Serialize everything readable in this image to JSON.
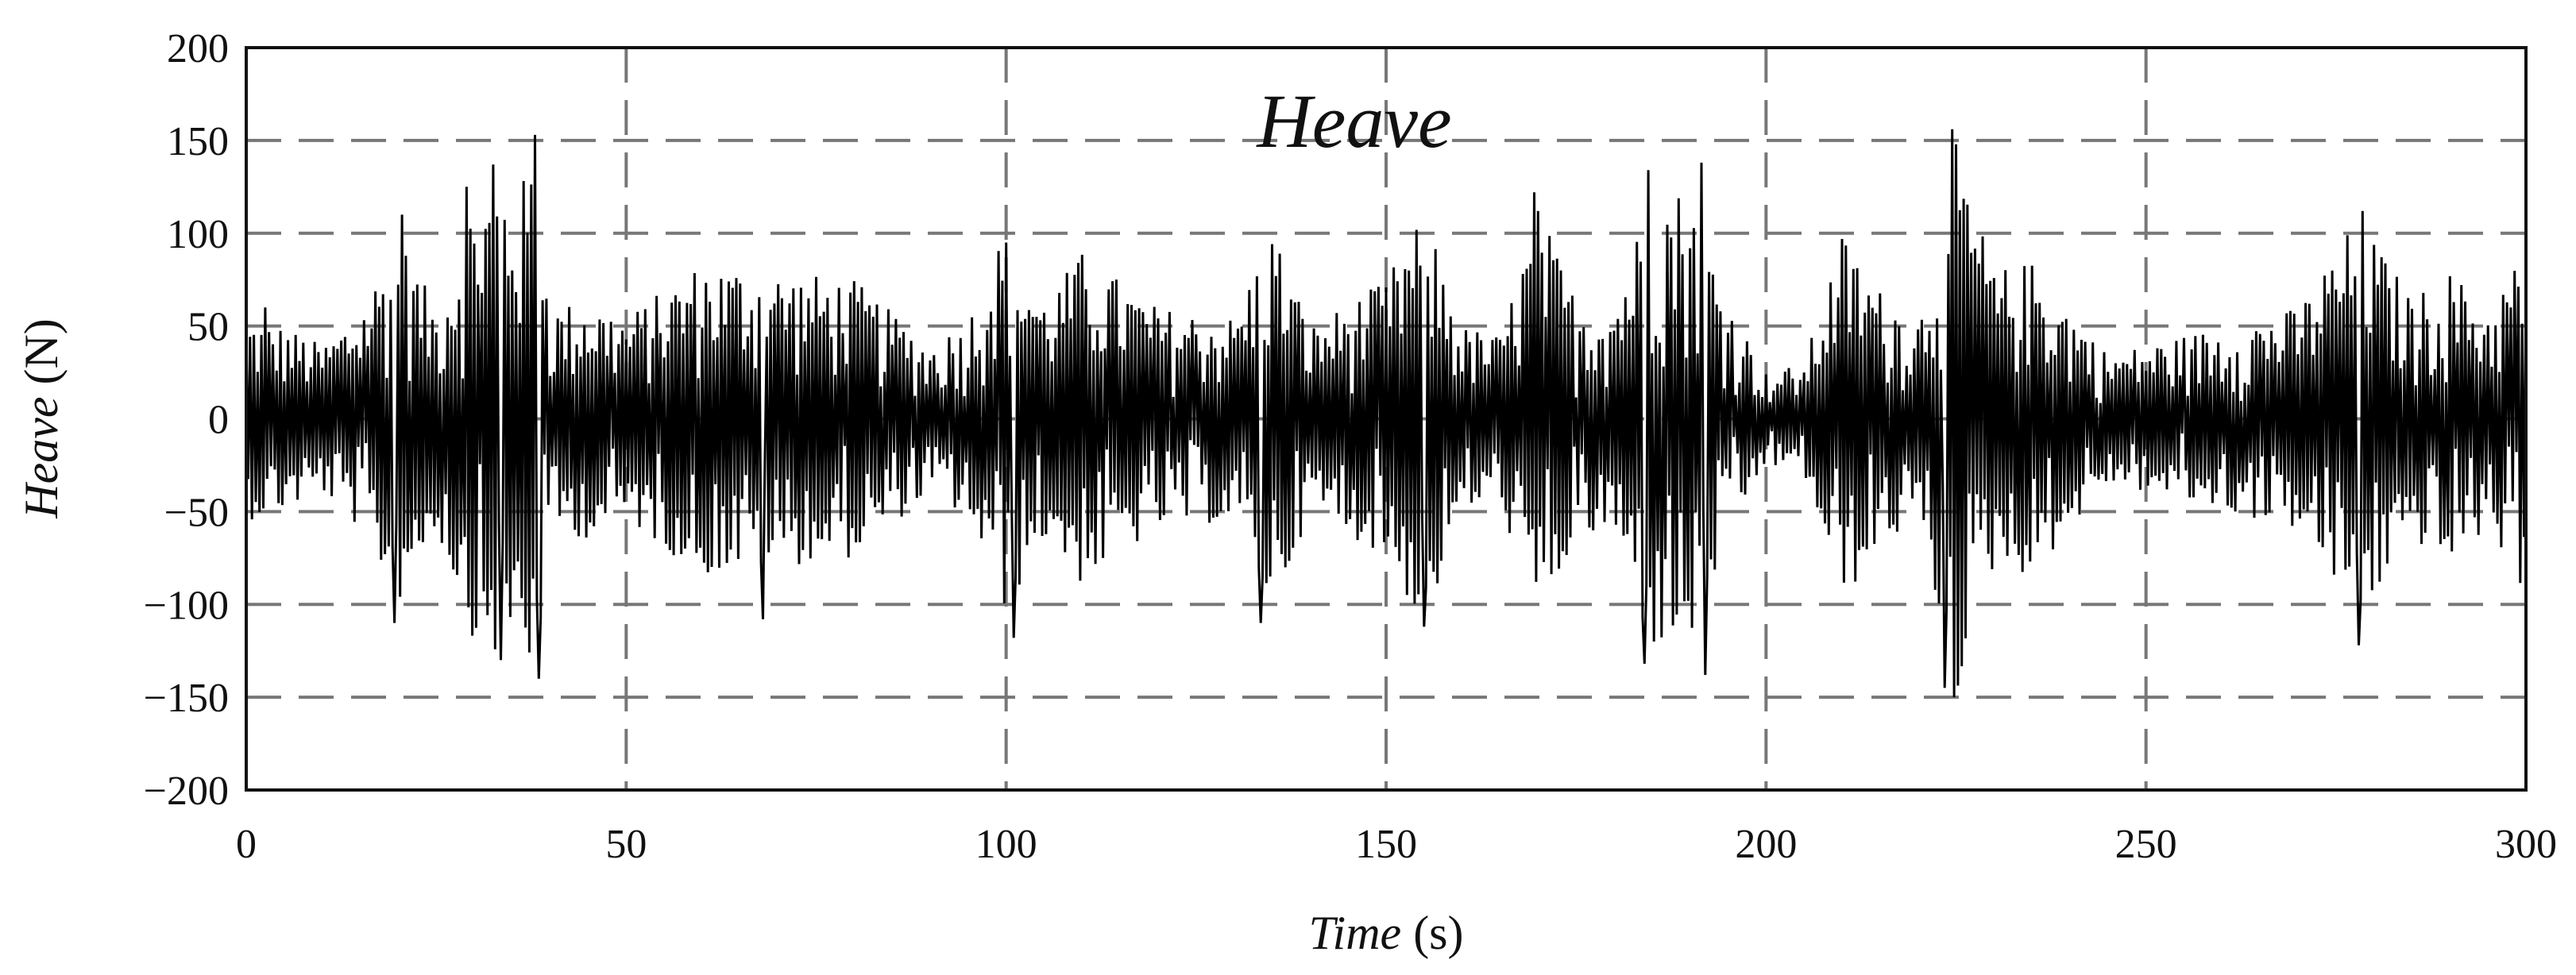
{
  "chart_data": {
    "type": "line",
    "title": "Heave",
    "xlabel_italic": "Time",
    "xlabel_unit": " (s)",
    "ylabel_italic": "Heave",
    "ylabel_unit": " (N)",
    "xlim": [
      0,
      300
    ],
    "ylim": [
      -200,
      200
    ],
    "xticks": [
      0,
      50,
      100,
      150,
      200,
      250,
      300
    ],
    "yticks": [
      200,
      150,
      100,
      50,
      0,
      -50,
      -100,
      -150,
      -200
    ],
    "grid": {
      "x": true,
      "y": true,
      "style": "dashed"
    },
    "sample_interval_s": 0.25,
    "envelope": {
      "t": [
        0,
        5,
        10,
        15,
        20,
        25,
        30,
        33,
        36,
        38,
        40,
        45,
        50,
        60,
        70,
        80,
        90,
        95,
        100,
        105,
        110,
        120,
        130,
        135,
        140,
        150,
        155,
        160,
        165,
        170,
        175,
        180,
        185,
        190,
        195,
        200,
        205,
        210,
        215,
        220,
        225,
        230,
        235,
        240,
        245,
        250,
        260,
        270,
        278,
        285,
        290,
        295,
        300
      ],
      "amp": [
        55,
        50,
        40,
        60,
        100,
        60,
        120,
        130,
        125,
        145,
        60,
        65,
        55,
        85,
        80,
        75,
        40,
        55,
        105,
        65,
        90,
        60,
        55,
        105,
        50,
        75,
        115,
        50,
        45,
        115,
        65,
        65,
        125,
        125,
        65,
        25,
        30,
        100,
        70,
        55,
        150,
        80,
        85,
        60,
        35,
        40,
        50,
        60,
        110,
        65,
        80,
        60,
        95
      ]
    },
    "peaks": [
      {
        "t": 2.5,
        "y": 60
      },
      {
        "t": 19.5,
        "y": -110
      },
      {
        "t": 20.5,
        "y": 110
      },
      {
        "t": 29.0,
        "y": 125
      },
      {
        "t": 32.5,
        "y": 137
      },
      {
        "t": 33.5,
        "y": -130
      },
      {
        "t": 38.0,
        "y": 153
      },
      {
        "t": 38.5,
        "y": -140
      },
      {
        "t": 68.0,
        "y": -108
      },
      {
        "t": 101.0,
        "y": -118
      },
      {
        "t": 133.5,
        "y": -110
      },
      {
        "t": 155.0,
        "y": -112
      },
      {
        "t": 169.5,
        "y": 122
      },
      {
        "t": 184.0,
        "y": -132
      },
      {
        "t": 184.5,
        "y": 134
      },
      {
        "t": 191.5,
        "y": 138
      },
      {
        "t": 192.0,
        "y": -138
      },
      {
        "t": 224.5,
        "y": 156
      },
      {
        "t": 224.75,
        "y": -150
      },
      {
        "t": 223.5,
        "y": -145
      },
      {
        "t": 278.0,
        "y": -122
      },
      {
        "t": 278.5,
        "y": 112
      }
    ]
  }
}
